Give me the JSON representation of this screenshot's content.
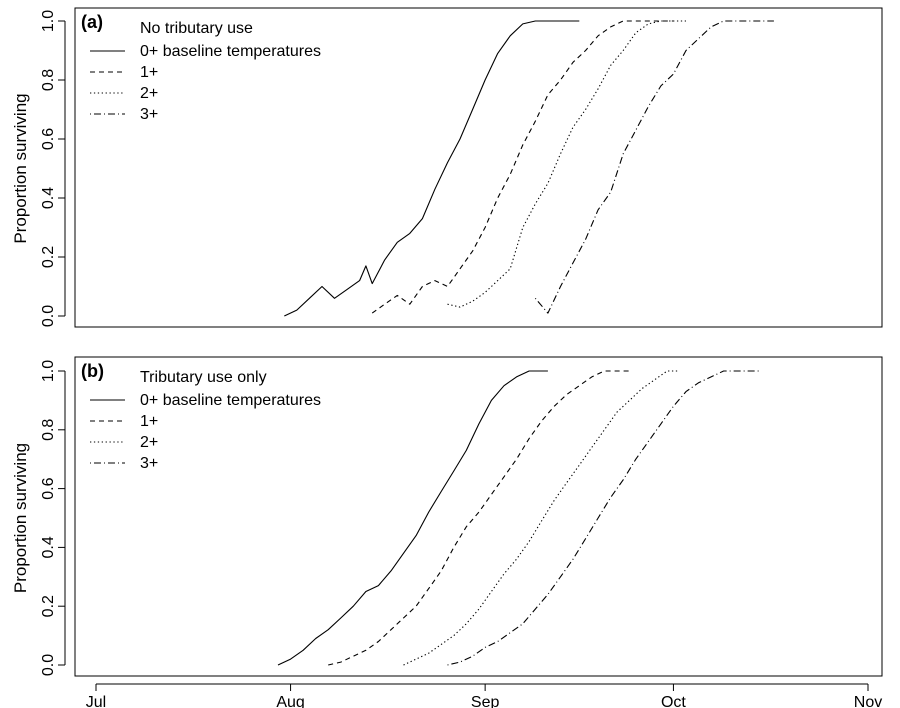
{
  "chart_data": [
    {
      "type": "line",
      "panel_label": "(a)",
      "legend_title": "No tributary use",
      "ylabel": "Proportion surviving",
      "xlabel": "",
      "ylim": [
        0,
        1
      ],
      "y_ticks": [
        "0.0",
        "0.2",
        "0.4",
        "0.6",
        "0.8",
        "1.0"
      ],
      "x_ticks": [],
      "legend_position": "top-left",
      "grid": false,
      "series": [
        {
          "name": "0+ baseline temperatures",
          "style": "solid",
          "x": [
            "2010-07-31",
            "2010-08-02",
            "2010-08-04",
            "2010-08-06",
            "2010-08-08",
            "2010-08-10",
            "2010-08-12",
            "2010-08-13",
            "2010-08-14",
            "2010-08-16",
            "2010-08-18",
            "2010-08-20",
            "2010-08-22",
            "2010-08-24",
            "2010-08-26",
            "2010-08-28",
            "2010-08-30",
            "2010-09-01",
            "2010-09-03",
            "2010-09-05",
            "2010-09-07",
            "2010-09-09",
            "2010-09-10",
            "2010-09-11",
            "2010-09-16"
          ],
          "values": [
            0.0,
            0.02,
            0.06,
            0.1,
            0.06,
            0.09,
            0.12,
            0.17,
            0.11,
            0.19,
            0.25,
            0.28,
            0.33,
            0.43,
            0.52,
            0.6,
            0.7,
            0.8,
            0.89,
            0.95,
            0.99,
            1.0,
            1.0,
            1.0,
            1.0
          ]
        },
        {
          "name": "1+",
          "style": "dashed",
          "x": [
            "2010-08-14",
            "2010-08-16",
            "2010-08-18",
            "2010-08-20",
            "2010-08-22",
            "2010-08-24",
            "2010-08-26",
            "2010-08-28",
            "2010-08-30",
            "2010-09-01",
            "2010-09-03",
            "2010-09-05",
            "2010-09-07",
            "2010-09-09",
            "2010-09-11",
            "2010-09-13",
            "2010-09-15",
            "2010-09-17",
            "2010-09-19",
            "2010-09-21",
            "2010-09-23",
            "2010-09-24",
            "2010-10-01"
          ],
          "values": [
            0.01,
            0.04,
            0.07,
            0.04,
            0.1,
            0.12,
            0.1,
            0.16,
            0.22,
            0.3,
            0.4,
            0.48,
            0.58,
            0.66,
            0.75,
            0.8,
            0.86,
            0.9,
            0.95,
            0.98,
            1.0,
            1.0,
            1.0
          ]
        },
        {
          "name": "2+",
          "style": "dotted",
          "x": [
            "2010-08-26",
            "2010-08-28",
            "2010-08-30",
            "2010-09-01",
            "2010-09-03",
            "2010-09-05",
            "2010-09-07",
            "2010-09-09",
            "2010-09-11",
            "2010-09-13",
            "2010-09-15",
            "2010-09-17",
            "2010-09-19",
            "2010-09-21",
            "2010-09-23",
            "2010-09-25",
            "2010-09-27",
            "2010-09-29",
            "2010-10-01",
            "2010-10-03"
          ],
          "values": [
            0.04,
            0.03,
            0.05,
            0.08,
            0.12,
            0.16,
            0.3,
            0.38,
            0.45,
            0.55,
            0.64,
            0.7,
            0.77,
            0.85,
            0.9,
            0.96,
            0.99,
            1.0,
            1.0,
            1.0
          ]
        },
        {
          "name": "3+",
          "style": "dashdot",
          "x": [
            "2010-09-09",
            "2010-09-11",
            "2010-09-13",
            "2010-09-15",
            "2010-09-17",
            "2010-09-19",
            "2010-09-21",
            "2010-09-23",
            "2010-09-25",
            "2010-09-27",
            "2010-09-29",
            "2010-10-01",
            "2010-10-03",
            "2010-10-05",
            "2010-10-07",
            "2010-10-09",
            "2010-10-11",
            "2010-10-13",
            "2010-10-15",
            "2010-10-17"
          ],
          "values": [
            0.06,
            0.01,
            0.1,
            0.18,
            0.26,
            0.36,
            0.42,
            0.55,
            0.63,
            0.71,
            0.78,
            0.82,
            0.9,
            0.94,
            0.98,
            1.0,
            1.0,
            1.0,
            1.0,
            1.0
          ]
        }
      ]
    },
    {
      "type": "line",
      "panel_label": "(b)",
      "legend_title": "Tributary use only",
      "ylabel": "Proportion surviving",
      "xlabel": "",
      "ylim": [
        0,
        1
      ],
      "y_ticks": [
        "0.0",
        "0.2",
        "0.4",
        "0.6",
        "0.8",
        "1.0"
      ],
      "x_ticks": [
        "Jul",
        "Aug",
        "Sep",
        "Oct",
        "Nov"
      ],
      "xlim": [
        "2010-07-01",
        "2010-11-01"
      ],
      "legend_position": "top-left",
      "grid": false,
      "series": [
        {
          "name": "0+ baseline temperatures",
          "style": "solid",
          "x": [
            "2010-07-30",
            "2010-08-01",
            "2010-08-03",
            "2010-08-05",
            "2010-08-07",
            "2010-08-09",
            "2010-08-11",
            "2010-08-13",
            "2010-08-15",
            "2010-08-17",
            "2010-08-19",
            "2010-08-21",
            "2010-08-23",
            "2010-08-25",
            "2010-08-27",
            "2010-08-29",
            "2010-08-31",
            "2010-09-02",
            "2010-09-04",
            "2010-09-06",
            "2010-09-08",
            "2010-09-09",
            "2010-09-11"
          ],
          "values": [
            0.0,
            0.02,
            0.05,
            0.09,
            0.12,
            0.16,
            0.2,
            0.25,
            0.27,
            0.32,
            0.38,
            0.44,
            0.52,
            0.59,
            0.66,
            0.73,
            0.82,
            0.9,
            0.95,
            0.98,
            1.0,
            1.0,
            1.0
          ]
        },
        {
          "name": "1+",
          "style": "dashed",
          "x": [
            "2010-08-07",
            "2010-08-09",
            "2010-08-11",
            "2010-08-13",
            "2010-08-15",
            "2010-08-17",
            "2010-08-19",
            "2010-08-21",
            "2010-08-23",
            "2010-08-25",
            "2010-08-27",
            "2010-08-29",
            "2010-08-31",
            "2010-09-02",
            "2010-09-04",
            "2010-09-06",
            "2010-09-08",
            "2010-09-10",
            "2010-09-12",
            "2010-09-14",
            "2010-09-16",
            "2010-09-18",
            "2010-09-20",
            "2010-09-22",
            "2010-09-24"
          ],
          "values": [
            0.0,
            0.01,
            0.03,
            0.05,
            0.08,
            0.12,
            0.16,
            0.2,
            0.26,
            0.32,
            0.4,
            0.47,
            0.52,
            0.58,
            0.64,
            0.7,
            0.77,
            0.83,
            0.88,
            0.92,
            0.95,
            0.98,
            1.0,
            1.0,
            1.0
          ]
        },
        {
          "name": "2+",
          "style": "dotted",
          "x": [
            "2010-08-19",
            "2010-08-21",
            "2010-08-23",
            "2010-08-25",
            "2010-08-27",
            "2010-08-29",
            "2010-08-31",
            "2010-09-02",
            "2010-09-04",
            "2010-09-06",
            "2010-09-08",
            "2010-09-10",
            "2010-09-12",
            "2010-09-14",
            "2010-09-16",
            "2010-09-18",
            "2010-09-20",
            "2010-09-22",
            "2010-09-24",
            "2010-09-26",
            "2010-09-28",
            "2010-09-30",
            "2010-10-02"
          ],
          "values": [
            0.0,
            0.02,
            0.04,
            0.07,
            0.1,
            0.14,
            0.19,
            0.25,
            0.31,
            0.36,
            0.42,
            0.49,
            0.56,
            0.62,
            0.68,
            0.74,
            0.8,
            0.86,
            0.9,
            0.94,
            0.97,
            1.0,
            1.0
          ]
        },
        {
          "name": "3+",
          "style": "dashdot",
          "x": [
            "2010-08-26",
            "2010-08-28",
            "2010-08-30",
            "2010-09-01",
            "2010-09-03",
            "2010-09-05",
            "2010-09-07",
            "2010-09-09",
            "2010-09-11",
            "2010-09-13",
            "2010-09-15",
            "2010-09-17",
            "2010-09-19",
            "2010-09-21",
            "2010-09-23",
            "2010-09-25",
            "2010-09-27",
            "2010-09-29",
            "2010-10-01",
            "2010-10-03",
            "2010-10-05",
            "2010-10-07",
            "2010-10-09",
            "2010-10-11",
            "2010-10-15"
          ],
          "values": [
            0.0,
            0.01,
            0.03,
            0.06,
            0.08,
            0.11,
            0.14,
            0.19,
            0.24,
            0.3,
            0.36,
            0.43,
            0.5,
            0.57,
            0.63,
            0.7,
            0.76,
            0.82,
            0.88,
            0.93,
            0.96,
            0.98,
            1.0,
            1.0,
            1.0
          ]
        }
      ]
    }
  ]
}
